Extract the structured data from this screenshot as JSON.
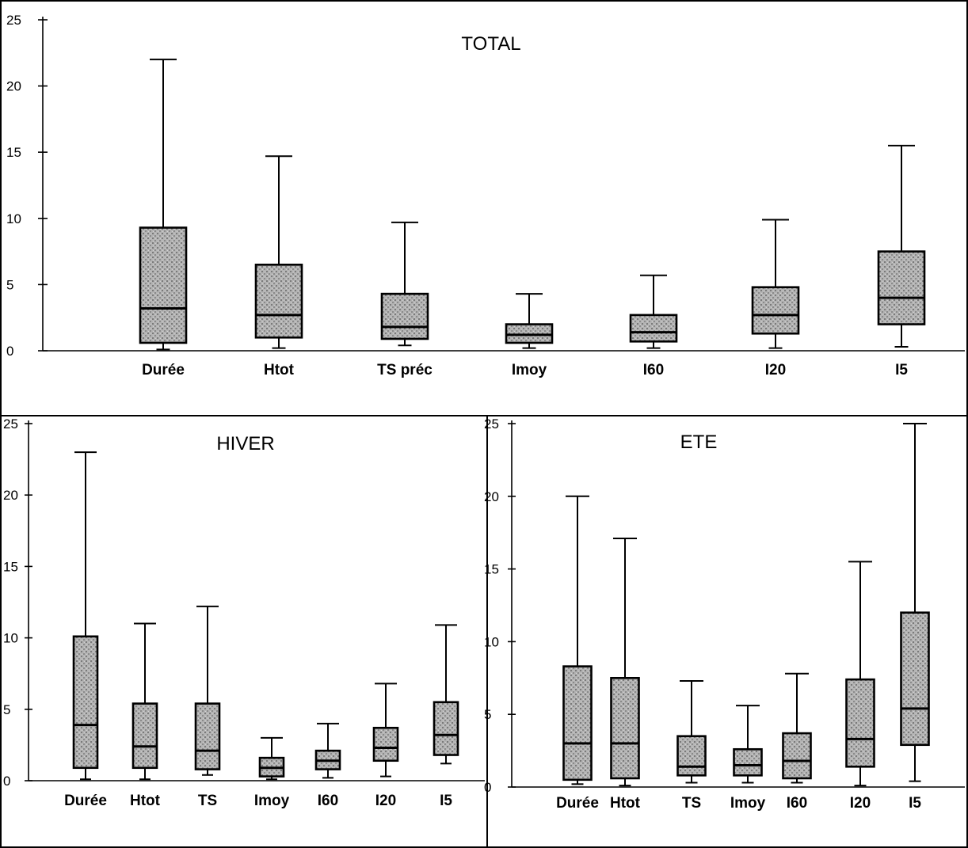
{
  "colors": {
    "box_fill": "#9a9a9a",
    "stroke": "#000000",
    "background": "#ffffff"
  },
  "chart_data": [
    {
      "type": "boxplot",
      "title": "TOTAL",
      "ylim": [
        0,
        25
      ],
      "yticks": [
        0,
        5,
        10,
        15,
        20,
        25
      ],
      "grid": false,
      "boxes": [
        {
          "label": "Durée",
          "min": 0.1,
          "q1": 0.6,
          "median": 3.2,
          "q3": 9.3,
          "max": 22.0
        },
        {
          "label": "Htot",
          "min": 0.2,
          "q1": 1.0,
          "median": 2.7,
          "q3": 6.5,
          "max": 14.7
        },
        {
          "label": "TS préc",
          "min": 0.4,
          "q1": 0.9,
          "median": 1.8,
          "q3": 4.3,
          "max": 9.7
        },
        {
          "label": "Imoy",
          "min": 0.2,
          "q1": 0.6,
          "median": 1.2,
          "q3": 2.0,
          "max": 4.3
        },
        {
          "label": "I60",
          "min": 0.2,
          "q1": 0.7,
          "median": 1.4,
          "q3": 2.7,
          "max": 5.7
        },
        {
          "label": "I20",
          "min": 0.2,
          "q1": 1.3,
          "median": 2.7,
          "q3": 4.8,
          "max": 9.9
        },
        {
          "label": "I5",
          "min": 0.3,
          "q1": 2.0,
          "median": 4.0,
          "q3": 7.5,
          "max": 15.5
        }
      ]
    },
    {
      "type": "boxplot",
      "title": "HIVER",
      "ylim": [
        0,
        25
      ],
      "yticks": [
        0,
        5,
        10,
        15,
        20,
        25
      ],
      "grid": false,
      "boxes": [
        {
          "label": "Durée",
          "min": 0.1,
          "q1": 0.9,
          "median": 3.9,
          "q3": 10.1,
          "max": 23.0
        },
        {
          "label": "Htot",
          "min": 0.1,
          "q1": 0.9,
          "median": 2.4,
          "q3": 5.4,
          "max": 11.0
        },
        {
          "label": "TS",
          "min": 0.4,
          "q1": 0.8,
          "median": 2.1,
          "q3": 5.4,
          "max": 12.2
        },
        {
          "label": "Imoy",
          "min": 0.1,
          "q1": 0.3,
          "median": 0.9,
          "q3": 1.6,
          "max": 3.0
        },
        {
          "label": "I60",
          "min": 0.2,
          "q1": 0.8,
          "median": 1.4,
          "q3": 2.1,
          "max": 4.0
        },
        {
          "label": "I20",
          "min": 0.3,
          "q1": 1.4,
          "median": 2.3,
          "q3": 3.7,
          "max": 6.8
        },
        {
          "label": "I5",
          "min": 1.2,
          "q1": 1.8,
          "median": 3.2,
          "q3": 5.5,
          "max": 10.9
        }
      ]
    },
    {
      "type": "boxplot",
      "title": "ETE",
      "ylim": [
        0,
        25
      ],
      "yticks": [
        0,
        5,
        10,
        15,
        20,
        25
      ],
      "grid": false,
      "boxes": [
        {
          "label": "Durée",
          "min": 0.2,
          "q1": 0.5,
          "median": 3.0,
          "q3": 8.3,
          "max": 20.0
        },
        {
          "label": "Htot",
          "min": 0.1,
          "q1": 0.6,
          "median": 3.0,
          "q3": 7.5,
          "max": 17.1
        },
        {
          "label": "TS",
          "min": 0.3,
          "q1": 0.8,
          "median": 1.4,
          "q3": 3.5,
          "max": 7.3
        },
        {
          "label": "Imoy",
          "min": 0.3,
          "q1": 0.8,
          "median": 1.5,
          "q3": 2.6,
          "max": 5.6
        },
        {
          "label": "I60",
          "min": 0.3,
          "q1": 0.6,
          "median": 1.8,
          "q3": 3.7,
          "max": 7.8
        },
        {
          "label": "I20",
          "min": 0.1,
          "q1": 1.4,
          "median": 3.3,
          "q3": 7.4,
          "max": 15.5
        },
        {
          "label": "I5",
          "min": 0.4,
          "q1": 2.9,
          "median": 5.4,
          "q3": 12.0,
          "max": 25.0
        }
      ]
    }
  ]
}
